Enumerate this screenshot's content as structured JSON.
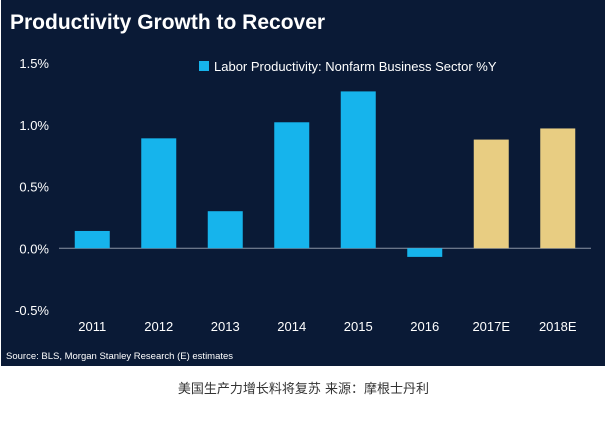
{
  "chart_data": {
    "type": "bar",
    "title": "Productivity Growth to Recover",
    "categories": [
      "2011",
      "2012",
      "2013",
      "2014",
      "2015",
      "2016",
      "2017E",
      "2018E"
    ],
    "series": [
      {
        "name": "Labor Productivity: Nonfarm Business Sector %Y",
        "values": [
          0.14,
          0.89,
          0.3,
          1.02,
          1.27,
          -0.07,
          0.88,
          0.97
        ]
      }
    ],
    "estimate_categories": [
      "2017E",
      "2018E"
    ],
    "ylim": [
      -0.5,
      1.5
    ],
    "yticks": [
      1.5,
      1.0,
      0.5,
      0.0,
      -0.5
    ],
    "ytick_labels": [
      "1.5%",
      "1.0%",
      "0.5%",
      "0.0%",
      "-0.5%"
    ],
    "xlabel": "",
    "ylabel": "",
    "grid": false,
    "legend_position": "top",
    "source": "Source:  BLS, Morgan Stanley Research (E) estimates",
    "colors": {
      "background": "#0a1a36",
      "actual_bar": "#16b4ec",
      "estimate_bar": "#e8cd82",
      "axis": "#8a93a3",
      "text": "#ffffff"
    }
  },
  "caption": "美国生产力增长料将复苏 来源：摩根士丹利"
}
